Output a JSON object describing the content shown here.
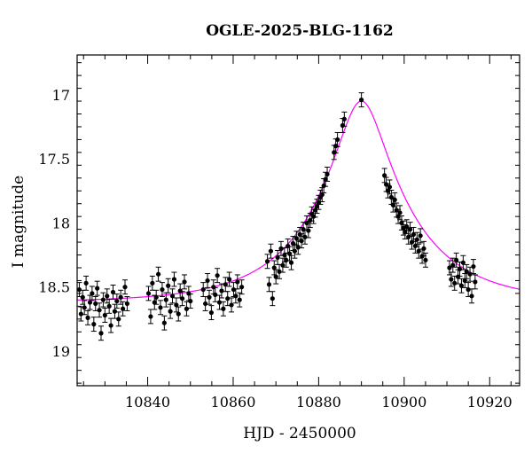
{
  "chart_data": {
    "type": "scatter",
    "title": "OGLE-2025-BLG-1162",
    "xlabel": "HJD - 2450000",
    "ylabel": "I magnitude",
    "xlim": [
      10823.5,
      10927
    ],
    "ylim": [
      19.27,
      16.69
    ],
    "y_inverted": true,
    "grid": false,
    "xticks": [
      10840,
      10860,
      10880,
      10900,
      10920
    ],
    "yticks": [
      17,
      17.5,
      18,
      18.5,
      19
    ],
    "xtick_labels": [
      "10840",
      "10860",
      "10880",
      "10900",
      "10920"
    ],
    "ytick_labels": [
      "17",
      "17.5",
      "18",
      "18.5",
      "19"
    ],
    "model": {
      "type": "point-lens microlensing fit",
      "t0": 10890.0,
      "baseline_mag": 18.62,
      "peak_mag": 17.05,
      "color": "#ff00ff"
    },
    "marker_color": "#000000",
    "series": [
      {
        "x": [
          10824.0,
          10824.4,
          10824.8,
          10825.2,
          10825.6,
          10826.0,
          10826.5,
          10827.0,
          10827.4,
          10827.8,
          10828.2,
          10828.7,
          10829.1,
          10829.6,
          10830.0,
          10830.5,
          10831.0,
          10831.4,
          10831.9,
          10832.3,
          10832.8,
          10833.2,
          10833.7,
          10834.2,
          10834.7,
          10835.2,
          10840.2,
          10840.7,
          10841.1,
          10841.6,
          10842.0,
          10842.5,
          10843.0,
          10843.4,
          10843.9,
          10844.3,
          10844.8,
          10845.3,
          10845.8,
          10846.2,
          10846.7,
          10847.2,
          10847.6,
          10848.1,
          10848.6,
          10849.1,
          10849.6,
          10850.0,
          10853.0,
          10853.5,
          10854.0,
          10854.4,
          10854.9,
          10855.4,
          10855.8,
          10856.3,
          10856.8,
          10857.3,
          10857.7,
          10858.2,
          10858.7,
          10859.1,
          10859.6,
          10860.1,
          10860.6,
          10861.0,
          10861.5,
          10862.0,
          10868.0,
          10868.4,
          10868.8,
          10869.2,
          10869.6,
          10870.0,
          10870.4,
          10870.8,
          10871.2,
          10871.6,
          10872.0,
          10872.4,
          10872.8,
          10873.2,
          10873.6,
          10874.0,
          10874.4,
          10874.8,
          10875.2,
          10875.6,
          10876.0,
          10876.4,
          10876.8,
          10877.2,
          10877.6,
          10878.0,
          10878.4,
          10878.8,
          10879.2,
          10879.6,
          10880.0,
          10880.4,
          10880.8,
          10881.2,
          10881.6,
          10882.0,
          10883.6,
          10884.0,
          10884.4,
          10885.6,
          10886.0,
          10890.0,
          10895.4,
          10895.8,
          10896.2,
          10896.6,
          10897.0,
          10897.4,
          10897.8,
          10898.2,
          10898.6,
          10899.0,
          10899.4,
          10899.8,
          10900.2,
          10900.6,
          10901.0,
          10901.4,
          10901.8,
          10902.2,
          10902.6,
          10903.0,
          10903.4,
          10903.8,
          10904.2,
          10904.6,
          10905.0,
          10910.6,
          10911.0,
          10911.4,
          10911.8,
          10912.2,
          10912.6,
          10913.0,
          10913.4,
          10913.8,
          10914.2,
          10914.6,
          10915.0,
          10915.4,
          10915.8,
          10916.2,
          10916.6
        ],
        "y": [
          18.52,
          18.71,
          18.58,
          18.66,
          18.47,
          18.74,
          18.62,
          18.55,
          18.79,
          18.63,
          18.51,
          18.68,
          18.86,
          18.6,
          18.72,
          18.57,
          18.65,
          18.8,
          18.54,
          18.69,
          18.61,
          18.75,
          18.58,
          18.67,
          18.5,
          18.63,
          18.55,
          18.73,
          18.47,
          18.62,
          18.58,
          18.4,
          18.66,
          18.52,
          18.78,
          18.6,
          18.49,
          18.69,
          18.57,
          18.44,
          18.64,
          18.71,
          18.53,
          18.59,
          18.46,
          18.67,
          18.55,
          18.61,
          18.52,
          18.63,
          18.45,
          18.58,
          18.7,
          18.5,
          18.56,
          18.41,
          18.62,
          18.53,
          18.67,
          18.48,
          18.59,
          18.44,
          18.64,
          18.52,
          18.57,
          18.46,
          18.6,
          18.5,
          18.3,
          18.48,
          18.22,
          18.59,
          18.35,
          18.42,
          18.27,
          18.38,
          18.2,
          18.33,
          18.25,
          18.29,
          18.18,
          18.24,
          18.31,
          18.16,
          18.22,
          18.12,
          18.19,
          18.09,
          18.14,
          18.05,
          18.11,
          18.0,
          18.06,
          17.98,
          17.93,
          17.95,
          17.9,
          17.87,
          17.84,
          17.8,
          17.78,
          17.71,
          17.66,
          17.62,
          17.45,
          17.4,
          17.35,
          17.24,
          17.19,
          17.04,
          17.63,
          17.7,
          17.75,
          17.72,
          17.8,
          17.86,
          17.82,
          17.9,
          17.95,
          17.92,
          18.0,
          18.04,
          18.07,
          18.03,
          18.11,
          18.05,
          18.15,
          18.09,
          18.18,
          18.13,
          18.22,
          18.1,
          18.26,
          18.2,
          18.29,
          18.35,
          18.44,
          18.33,
          18.47,
          18.29,
          18.42,
          18.36,
          18.49,
          18.31,
          18.45,
          18.38,
          18.52,
          18.4,
          18.57,
          18.34,
          18.46
        ],
        "yerr": 0.055
      }
    ]
  }
}
